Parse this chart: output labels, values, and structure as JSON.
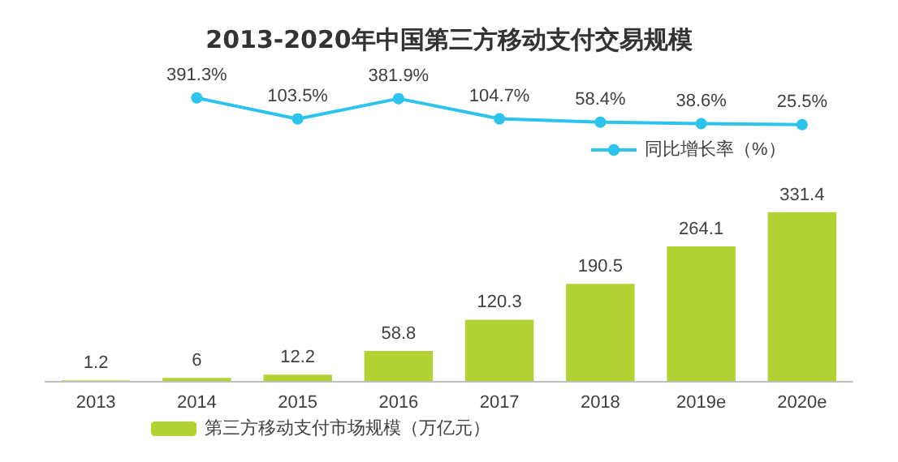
{
  "chart_data": [
    {
      "type": "line",
      "title": "2013-2020年中国第三方移动支付交易规模",
      "categories": [
        null,
        null,
        null,
        null,
        null,
        null,
        null,
        null
      ],
      "series": [
        {
          "name": "同比增长率（%）",
          "color": "#2cc3ec",
          "values": [
            null,
            391.3,
            103.5,
            381.9,
            104.7,
            58.4,
            38.6,
            25.5
          ],
          "value_labels": [
            null,
            "391.3%",
            "103.5%",
            "381.9%",
            "104.7%",
            "58.4%",
            "38.6%",
            "25.5%"
          ]
        }
      ],
      "legend": "bottom right",
      "marker": "circle",
      "grid": false,
      "tick_labels": false
    },
    {
      "type": "bar",
      "categories": [
        "2013",
        "2014",
        "2015",
        "2016",
        "2017",
        "2018",
        "2019e",
        "2020e"
      ],
      "series": [
        {
          "name": "第三方移动支付市场规模（万亿元）",
          "color": "#b3d334",
          "values": [
            1.2,
            6.0,
            12.2,
            58.8,
            120.3,
            190.5,
            264.1,
            331.4
          ]
        }
      ],
      "data_labels": true,
      "legend": "bottom left",
      "grid": false,
      "tick_labels": "x"
    }
  ]
}
